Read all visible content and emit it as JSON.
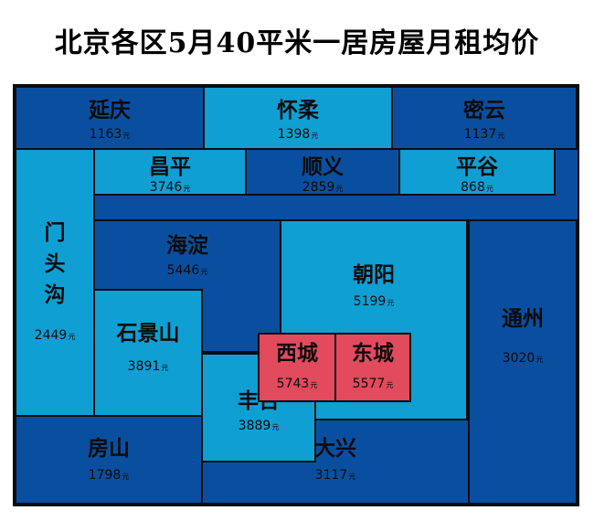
{
  "title": "北京各区5月40平米一居房屋月租均价",
  "chart_data": {
    "type": "treemap",
    "title": "北京各区5月40平米一居房屋月租均价",
    "unit": "元",
    "categories": [
      "延庆",
      "怀柔",
      "密云",
      "昌平",
      "顺义",
      "平谷",
      "门头沟",
      "海淀",
      "朝阳",
      "石景山",
      "通州",
      "西城",
      "东城",
      "丰台",
      "房山",
      "大兴"
    ],
    "values": [
      1163,
      1398,
      1137,
      3746,
      2859,
      868,
      2449,
      5446,
      5199,
      3891,
      3020,
      5743,
      5577,
      3889,
      1798,
      3117
    ],
    "colors": {
      "dark": "#0a4f9f",
      "light": "#0f9fd3",
      "highlight": "#e24a5e"
    }
  },
  "regions": [
    {
      "id": "yanqing",
      "name": "延庆",
      "value": "1163",
      "unit": "元"
    },
    {
      "id": "huairou",
      "name": "怀柔",
      "value": "1398",
      "unit": "元"
    },
    {
      "id": "miyun",
      "name": "密云",
      "value": "1137",
      "unit": "元"
    },
    {
      "id": "changping",
      "name": "昌平",
      "value": "3746",
      "unit": "元"
    },
    {
      "id": "shunyi",
      "name": "顺义",
      "value": "2859",
      "unit": "元"
    },
    {
      "id": "pinggu",
      "name": "平谷",
      "value": "868",
      "unit": "元"
    },
    {
      "id": "mentougou",
      "name": "门头沟",
      "value": "2449",
      "unit": "元"
    },
    {
      "id": "haidian",
      "name": "海淀",
      "value": "5446",
      "unit": "元"
    },
    {
      "id": "chaoyang",
      "name": "朝阳",
      "value": "5199",
      "unit": "元"
    },
    {
      "id": "shijingshan",
      "name": "石景山",
      "value": "3891",
      "unit": "元"
    },
    {
      "id": "tongzhou",
      "name": "通州",
      "value": "3020",
      "unit": "元"
    },
    {
      "id": "xicheng",
      "name": "西城",
      "value": "5743",
      "unit": "元"
    },
    {
      "id": "dongcheng",
      "name": "东城",
      "value": "5577",
      "unit": "元"
    },
    {
      "id": "fengtai",
      "name": "丰台",
      "value": "3889",
      "unit": "元"
    },
    {
      "id": "fangshan",
      "name": "房山",
      "value": "1798",
      "unit": "元"
    },
    {
      "id": "daxing",
      "name": "大兴",
      "value": "3117",
      "unit": "元"
    }
  ]
}
